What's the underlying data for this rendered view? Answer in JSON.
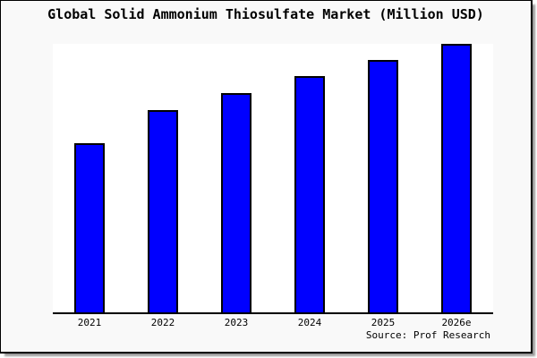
{
  "window": {
    "background": "#f9f9f9",
    "plot_background": "#ffffff",
    "border_color": "#000000",
    "shadow_color": "#9a9a9a"
  },
  "chart_data": {
    "type": "bar",
    "title": "Global Solid Ammonium Thiosulfate Market (Million USD)",
    "categories": [
      "2021",
      "2022",
      "2023",
      "2024",
      "2025",
      "2026e"
    ],
    "values": [
      189,
      226,
      245,
      264,
      282,
      300
    ],
    "ylim": [
      0,
      302
    ],
    "y_axis": "unlabeled",
    "value_note": "no y-axis scale shown; values are relative estimates of bar heights",
    "xlabel": "",
    "ylabel": "",
    "grid": false,
    "legend": false,
    "bar_color": "#0000ff",
    "bar_border_color": "#000000",
    "source": "Source: Prof Research"
  }
}
